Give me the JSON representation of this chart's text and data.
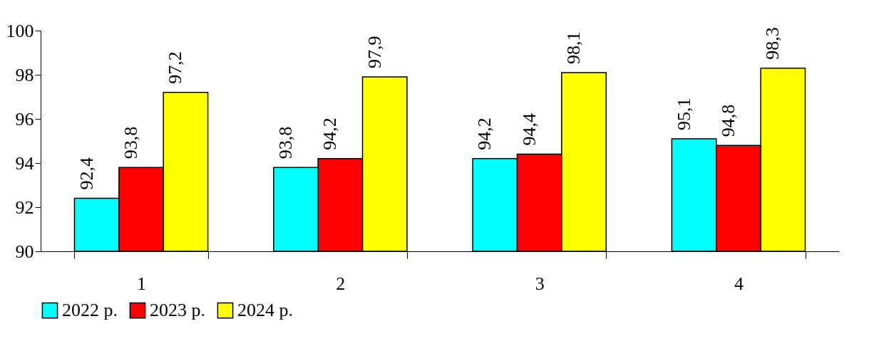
{
  "chart_data": {
    "type": "bar",
    "categories": [
      "1",
      "2",
      "3",
      "4"
    ],
    "series": [
      {
        "name": "2022 р.",
        "color": "#00ffff",
        "values": [
          92.4,
          93.8,
          94.2,
          95.1
        ],
        "value_labels": [
          "92,4",
          "93,8",
          "94,2",
          "95,1"
        ]
      },
      {
        "name": "2023 р.",
        "color": "#ff0000",
        "values": [
          93.8,
          94.2,
          94.4,
          94.8
        ],
        "value_labels": [
          "93,8",
          "94,2",
          "94,4",
          "94,8"
        ]
      },
      {
        "name": "2024 р.",
        "color": "#ffff00",
        "values": [
          97.2,
          97.9,
          98.1,
          98.3
        ],
        "value_labels": [
          "97,2",
          "97,9",
          "98,1",
          "98,3"
        ]
      }
    ],
    "ylim": [
      90,
      100
    ],
    "yticks": [
      90,
      92,
      94,
      96,
      98,
      100
    ],
    "grid": false,
    "legend": "bottom"
  }
}
